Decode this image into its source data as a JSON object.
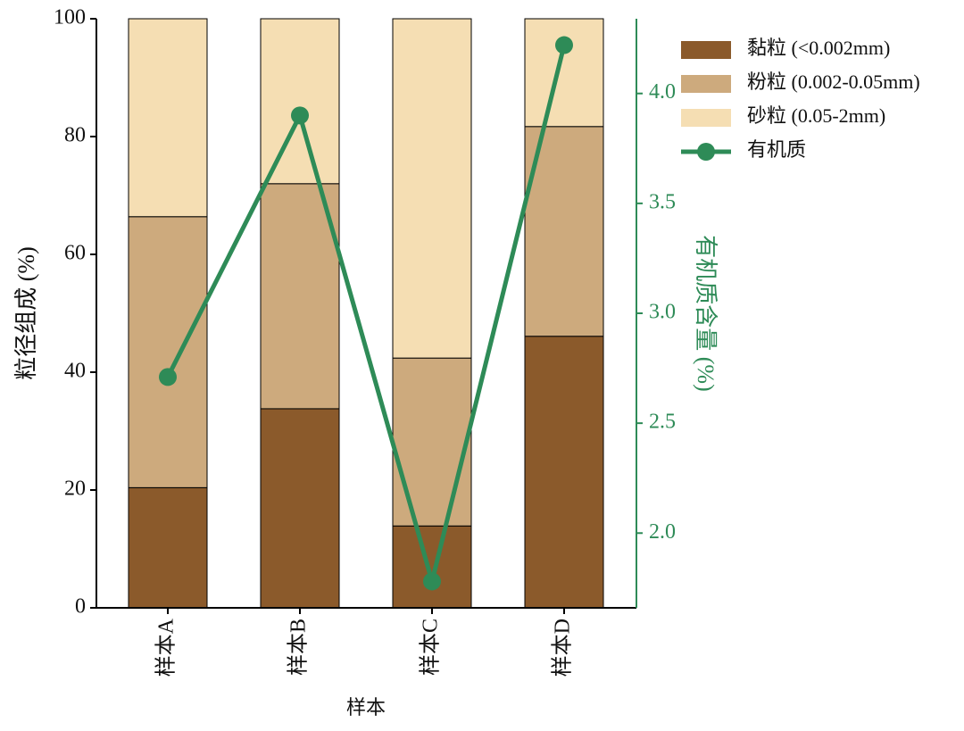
{
  "chart_data": {
    "type": "bar",
    "stacked": true,
    "categories": [
      "样本A",
      "样本B",
      "样本C",
      "样本D"
    ],
    "x_label": "样本",
    "y_label": "粒径组成 (%)",
    "y2_label": "有机质含量 (%)",
    "series": [
      {
        "name": "黏粒 (<0.002mm)",
        "color": "#8b5a2b",
        "values": [
          20.4,
          33.8,
          13.9,
          46.1
        ]
      },
      {
        "name": "粉粒 (0.002-0.05mm)",
        "color": "#cdaa7d",
        "values": [
          46.0,
          38.2,
          28.5,
          35.6
        ]
      },
      {
        "name": "砂粒 (0.05-2mm)",
        "color": "#f5deb3",
        "values": [
          33.6,
          28.0,
          57.6,
          18.3
        ]
      },
      {
        "name": "有机质",
        "type": "line",
        "axis": "y2",
        "color": "#2e8b57",
        "values": [
          2.71,
          3.9,
          1.78,
          4.22
        ]
      }
    ],
    "ylim": [
      0,
      100
    ],
    "yticks": [
      0,
      20,
      40,
      60,
      80,
      100
    ],
    "y2lim": [
      1.66,
      4.34
    ],
    "y2ticks": [
      {
        "value": 2,
        "label": "2.0"
      },
      {
        "value": 2.5,
        "label": "2.5"
      },
      {
        "value": 3,
        "label": "3.0"
      },
      {
        "value": 3.5,
        "label": "3.5"
      },
      {
        "value": 4,
        "label": "4.0"
      }
    ],
    "y2_color": "#2e8b57",
    "legend": "right"
  }
}
